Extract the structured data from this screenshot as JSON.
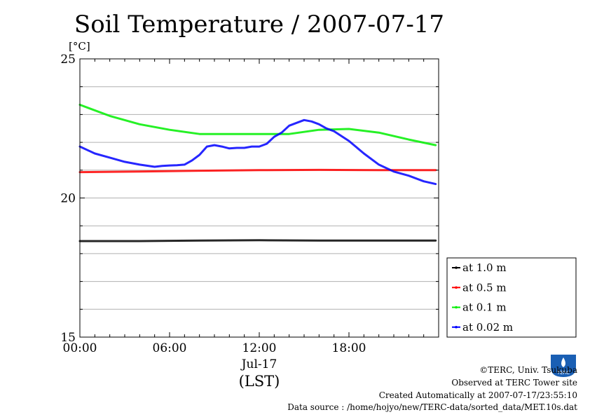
{
  "chart_data": {
    "type": "line",
    "title": "Soil Temperature / 2007-07-17",
    "ylabel": "[°C]",
    "xlabel": "(LST)",
    "date_label": "Jul-17",
    "ylim": [
      15,
      25
    ],
    "xlim": [
      0,
      24
    ],
    "x_tick_labels": [
      "00:00",
      "06:00",
      "12:00",
      "18:00"
    ],
    "x_tick_hours": [
      0,
      6,
      12,
      18
    ],
    "y_tick_labels": [
      "15",
      "20",
      "25"
    ],
    "y_tick_values": [
      15,
      20,
      25
    ],
    "grid": true,
    "legend_position": "right",
    "series": [
      {
        "name": "at 1.0 m",
        "color": "#000000",
        "x": [
          0,
          4,
          8,
          12,
          16,
          20,
          23.8
        ],
        "y": [
          18.45,
          18.45,
          18.47,
          18.48,
          18.47,
          18.47,
          18.47
        ]
      },
      {
        "name": "at 0.5 m",
        "color": "#ff0000",
        "x": [
          0,
          4,
          8,
          12,
          16,
          20,
          23.8
        ],
        "y": [
          20.93,
          20.95,
          20.98,
          21.0,
          21.01,
          21.0,
          21.0
        ]
      },
      {
        "name": "at 0.1 m",
        "color": "#00ee00",
        "x": [
          0,
          2,
          4,
          6,
          8,
          10,
          12,
          14,
          16,
          18,
          20,
          22,
          23.8
        ],
        "y": [
          23.35,
          22.95,
          22.65,
          22.45,
          22.3,
          22.3,
          22.3,
          22.3,
          22.45,
          22.48,
          22.35,
          22.1,
          21.9
        ]
      },
      {
        "name": "at 0.02 m",
        "color": "#0000ff",
        "x": [
          0,
          1,
          2,
          3,
          4,
          5,
          5.5,
          6,
          6.5,
          7,
          7.5,
          8,
          8.5,
          9,
          9.5,
          10,
          10.5,
          11,
          11.5,
          12,
          12.5,
          13,
          13.5,
          14,
          14.5,
          15,
          15.5,
          16,
          16.5,
          17,
          18,
          19,
          20,
          21,
          22,
          23,
          23.8
        ],
        "y": [
          21.85,
          21.6,
          21.45,
          21.3,
          21.2,
          21.12,
          21.15,
          21.17,
          21.18,
          21.2,
          21.35,
          21.55,
          21.85,
          21.9,
          21.85,
          21.78,
          21.8,
          21.8,
          21.85,
          21.85,
          21.95,
          22.2,
          22.35,
          22.6,
          22.7,
          22.8,
          22.75,
          22.65,
          22.5,
          22.4,
          22.05,
          21.6,
          21.2,
          20.95,
          20.8,
          20.6,
          20.5
        ]
      }
    ]
  },
  "footer": {
    "copyright": "©TERC, Univ. Tsukuba",
    "observed": "Observed at TERC Tower site",
    "created": "Created Automatically at 2007-07-17/23:55:10",
    "source": "Data source : /home/hojyo/new/TERC-data/sorted_data/MET.10s.dat",
    "logo_text": "TERC"
  }
}
